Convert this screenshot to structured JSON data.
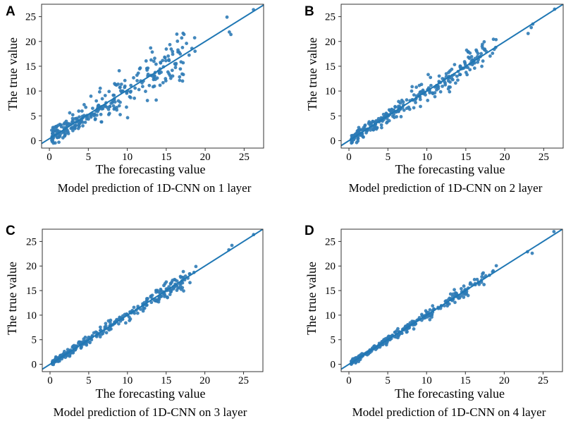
{
  "colors": {
    "points": "#2f7bb6",
    "line": "#1f77b4",
    "frame": "#333333"
  },
  "chart_data": [
    {
      "panel": "A",
      "type": "scatter",
      "title": "Model prediction of 1D-CNN on 1 layer",
      "xlabel": "The forecasting  value",
      "ylabel": "The true value",
      "xlim": [
        -1,
        27.5
      ],
      "ylim": [
        -1.5,
        27.5
      ],
      "xticks": [
        0,
        5,
        10,
        15,
        20,
        25
      ],
      "yticks": [
        0,
        5,
        10,
        15,
        20,
        25
      ],
      "fit_line": {
        "slope": 0.98,
        "intercept": 0.4
      },
      "spread": 1.6,
      "seed": 11,
      "points_outliers": [
        [
          22.8,
          24.9
        ],
        [
          23.3,
          21.4
        ],
        [
          23.1,
          21.9
        ],
        [
          26.2,
          26.4
        ],
        [
          17.6,
          19.6
        ],
        [
          18.3,
          18.6
        ]
      ]
    },
    {
      "panel": "B",
      "type": "scatter",
      "title": "Model prediction of 1D-CNN on 2 layer",
      "xlabel": "The forecasting  value",
      "ylabel": "The true value",
      "xlim": [
        -1,
        27.5
      ],
      "ylim": [
        -1.5,
        27.5
      ],
      "xticks": [
        0,
        5,
        10,
        15,
        20,
        25
      ],
      "yticks": [
        0,
        5,
        10,
        15,
        20,
        25
      ],
      "fit_line": {
        "slope": 1.0,
        "intercept": 0.0
      },
      "spread": 0.9,
      "seed": 23,
      "points_outliers": [
        [
          23.0,
          21.6
        ],
        [
          23.4,
          22.8
        ],
        [
          23.6,
          23.5
        ],
        [
          26.4,
          26.5
        ],
        [
          17.1,
          19.0
        ],
        [
          17.4,
          18.3
        ]
      ]
    },
    {
      "panel": "C",
      "type": "scatter",
      "title": "Model prediction of 1D-CNN on 3 layer",
      "xlabel": "The forecasting  value",
      "ylabel": "The true value",
      "xlim": [
        -1,
        27.5
      ],
      "ylim": [
        -1.5,
        27.5
      ],
      "xticks": [
        0,
        5,
        10,
        15,
        20,
        25
      ],
      "yticks": [
        0,
        5,
        10,
        15,
        20,
        25
      ],
      "fit_line": {
        "slope": 1.0,
        "intercept": 0.0
      },
      "spread": 0.55,
      "seed": 37,
      "points_outliers": [
        [
          23.1,
          23.3
        ],
        [
          23.5,
          24.2
        ],
        [
          26.3,
          26.4
        ],
        [
          18.6,
          18.7
        ],
        [
          17.2,
          17.6
        ]
      ]
    },
    {
      "panel": "D",
      "type": "scatter",
      "title": "Model prediction of 1D-CNN on 4 layer",
      "xlabel": "The forecasting  value",
      "ylabel": "The true value",
      "xlim": [
        -1,
        27.5
      ],
      "ylim": [
        -1.5,
        27.5
      ],
      "xticks": [
        0,
        5,
        10,
        15,
        20,
        25
      ],
      "yticks": [
        0,
        5,
        10,
        15,
        20,
        25
      ],
      "fit_line": {
        "slope": 1.0,
        "intercept": 0.0
      },
      "spread": 0.45,
      "seed": 53,
      "points_outliers": [
        [
          23.0,
          22.9
        ],
        [
          23.6,
          22.6
        ],
        [
          26.4,
          27.0
        ],
        [
          18.5,
          18.8
        ],
        [
          17.3,
          18.6
        ]
      ]
    }
  ]
}
